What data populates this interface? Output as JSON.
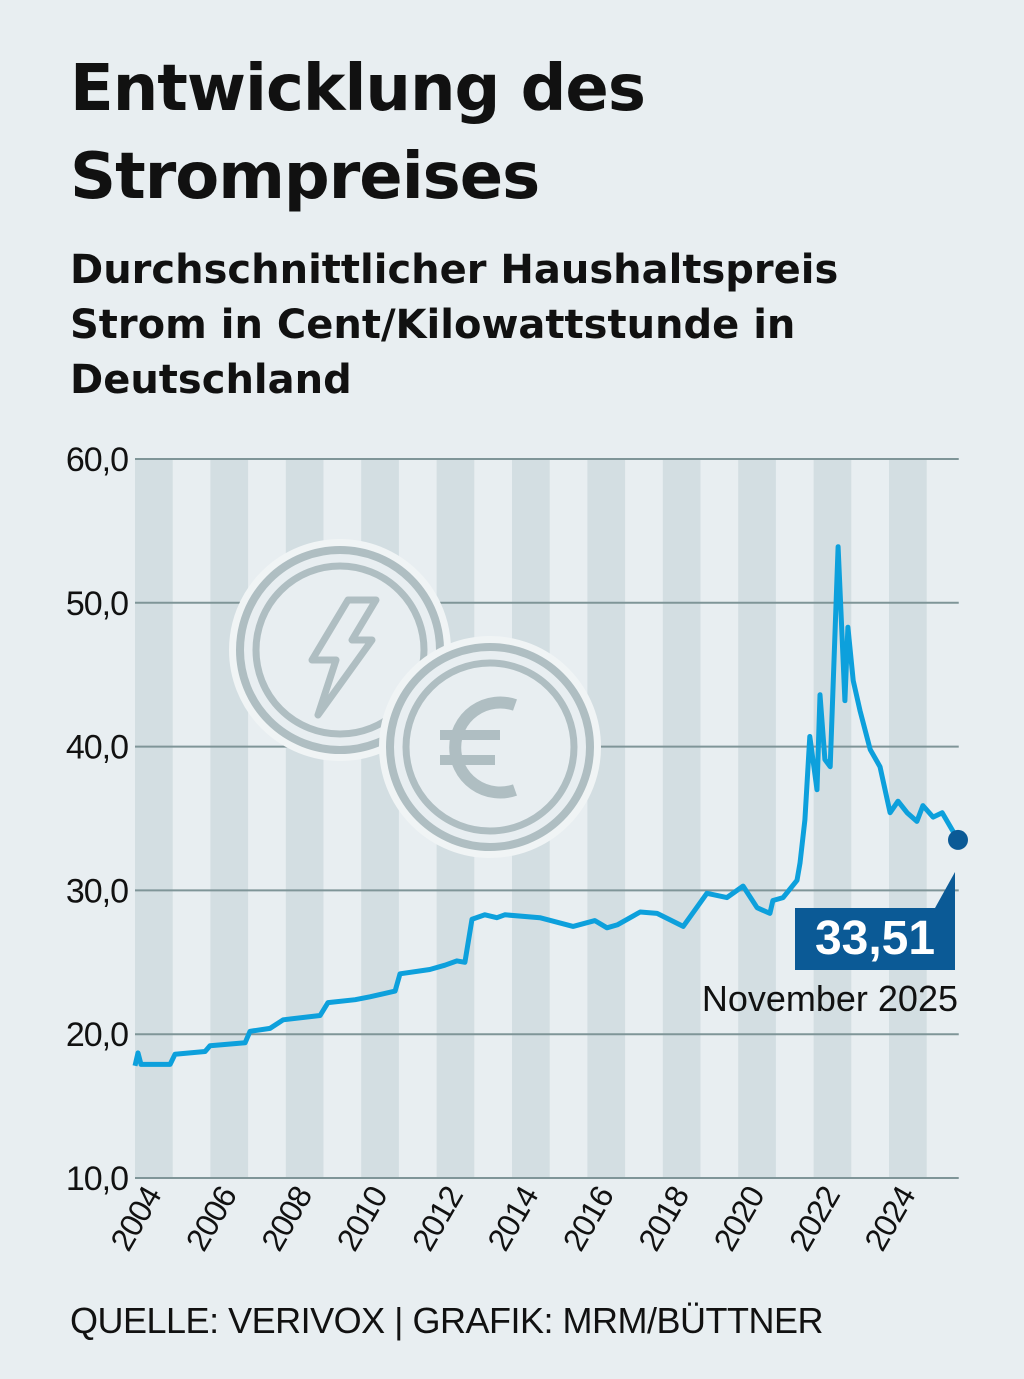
{
  "title": "Entwicklung des Strompreises",
  "subtitle": "Durchschnittlicher Haushaltspreis Strom in Cent/Kilowattstunde in Deutschland",
  "source": "QUELLE: VERIVOX | GRAFIK: MRM/BÜTTNER",
  "colors": {
    "background": "#e8eef1",
    "stripe": "#d3dee2",
    "gridline": "#7f9598",
    "line": "#0da0dc",
    "highlight": "#0b5a96",
    "icon": "#afbec2"
  },
  "icons": [
    "lightning-coin-icon",
    "euro-coin-icon"
  ],
  "chart_data": {
    "type": "line",
    "title": "Entwicklung des Strompreises",
    "ylabel": "",
    "xlabel": "",
    "ylim": [
      10,
      60
    ],
    "xlim": [
      2004,
      2025.85
    ],
    "yticks": [
      "10,0",
      "20,0",
      "30,0",
      "40,0",
      "50,0",
      "60,0"
    ],
    "ytick_values": [
      10,
      20,
      30,
      40,
      50,
      60
    ],
    "xticks": [
      "2004",
      "2006",
      "2008",
      "2010",
      "2012",
      "2014",
      "2016",
      "2018",
      "2020",
      "2022",
      "2024"
    ],
    "grid": "horizontal",
    "year_stripes": true,
    "series": [
      {
        "x": [
          2004.0,
          2004.08,
          2004.16,
          2004.93,
          2005.06,
          2005.86,
          2005.99,
          2006.92,
          2007.05,
          2007.58,
          2007.93,
          2008.91,
          2009.12,
          2009.84,
          2010.23,
          2010.9,
          2011.03,
          2011.82,
          2012.22,
          2012.54,
          2012.75,
          2012.94,
          2013.28,
          2013.6,
          2013.81,
          2014.74,
          2015.62,
          2016.2,
          2016.52,
          2016.79,
          2017.4,
          2017.85,
          2018.54,
          2019.17,
          2019.7,
          2020.13,
          2020.5,
          2020.84,
          2020.92,
          2021.19,
          2021.56,
          2021.64,
          2021.77,
          2021.9,
          2022.09,
          2022.17,
          2022.3,
          2022.44,
          2022.65,
          2022.83,
          2022.91,
          2023.05,
          2023.23,
          2023.5,
          2023.76,
          2024.03,
          2024.24,
          2024.48,
          2024.74,
          2024.9,
          2025.17,
          2025.41,
          2025.83
        ],
        "y": [
          17.8,
          18.7,
          17.9,
          17.9,
          18.6,
          18.8,
          19.2,
          19.4,
          20.2,
          20.4,
          21.0,
          21.3,
          22.2,
          22.4,
          22.6,
          23.0,
          24.2,
          24.5,
          24.8,
          25.1,
          25.0,
          28.0,
          28.3,
          28.1,
          28.3,
          28.1,
          27.5,
          27.9,
          27.4,
          27.6,
          28.5,
          28.4,
          27.5,
          29.8,
          29.5,
          30.3,
          28.8,
          28.4,
          29.3,
          29.5,
          30.7,
          31.9,
          34.9,
          40.7,
          37.0,
          43.6,
          39.1,
          38.6,
          53.9,
          43.2,
          48.3,
          44.6,
          42.5,
          39.8,
          38.6,
          35.4,
          36.2,
          35.4,
          34.8,
          35.9,
          35.1,
          35.4,
          33.51
        ]
      }
    ],
    "annotation": {
      "value": "33,51",
      "label": "November 2025"
    }
  }
}
